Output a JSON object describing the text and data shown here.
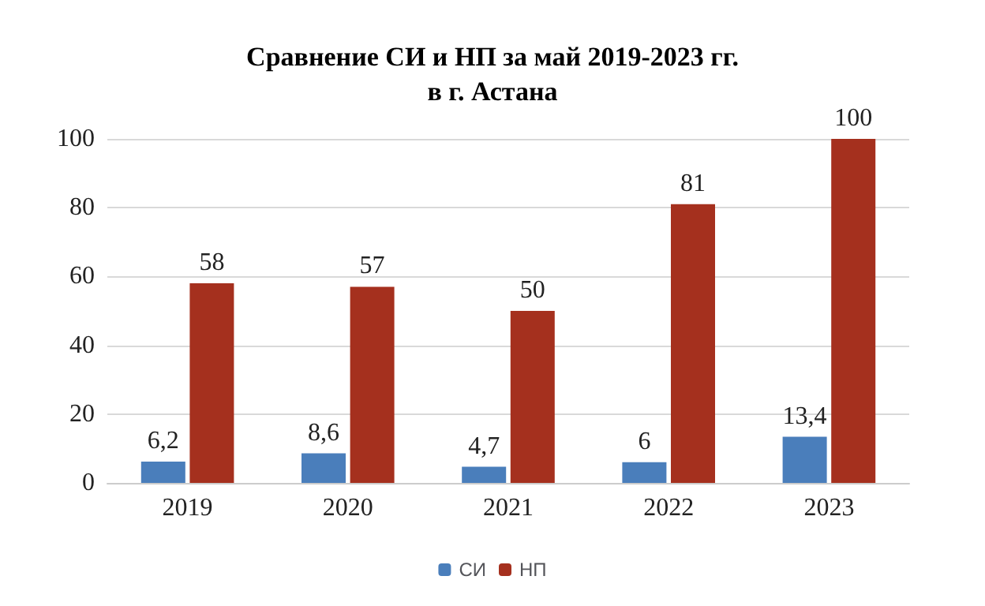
{
  "chart_data": {
    "type": "bar",
    "title": "Сравнение СИ и НП за май 2019-2023 гг.\nв г. Астана",
    "categories": [
      "2019",
      "2020",
      "2021",
      "2022",
      "2023"
    ],
    "series": [
      {
        "name": "СИ",
        "color": "#4a7ebb",
        "values": [
          6.2,
          8.6,
          4.7,
          6,
          13.4
        ],
        "value_labels": [
          "6,2",
          "8,6",
          "4,7",
          "6",
          "13,4"
        ]
      },
      {
        "name": "НП",
        "color": "#a5301e",
        "values": [
          58,
          57,
          50,
          81,
          100
        ],
        "value_labels": [
          "58",
          "57",
          "50",
          "81",
          "100"
        ]
      }
    ],
    "ylim": [
      0,
      100
    ],
    "yticks": [
      0,
      20,
      40,
      60,
      80,
      100
    ],
    "grid": "y",
    "legend": "bottom"
  }
}
